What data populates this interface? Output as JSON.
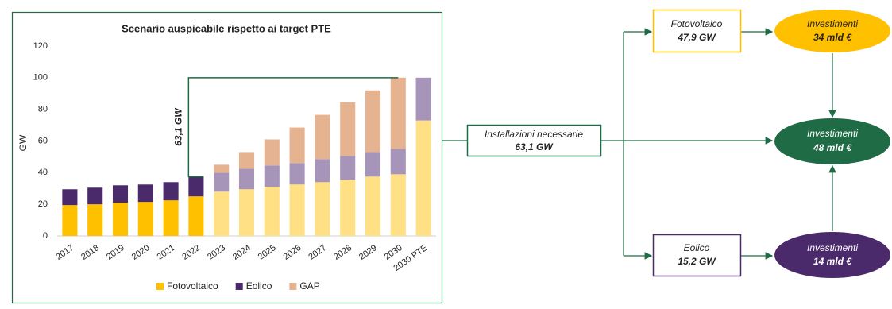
{
  "chart_data": {
    "type": "stacked-bar",
    "title": "Scenario auspicabile rispetto ai target PTE",
    "y_label": "GW",
    "categories": [
      "2017",
      "2018",
      "2019",
      "2020",
      "2021",
      "2022",
      "2023",
      "2024",
      "2025",
      "2026",
      "2027",
      "2028",
      "2029",
      "2030",
      "2030 PTE"
    ],
    "series": [
      {
        "name": "Fotovoltaico",
        "color": "#ffc000",
        "light_color": "#ffe084",
        "values": [
          19.5,
          20,
          21,
          21.5,
          22.5,
          25,
          28,
          29.5,
          31,
          32.5,
          34,
          35.5,
          37.5,
          39,
          73
        ]
      },
      {
        "name": "Eolico",
        "color": "#4b2a6b",
        "light_color": "#a795b9",
        "values": [
          10,
          10.5,
          11,
          11,
          11.5,
          12.5,
          12,
          13,
          13.5,
          13.5,
          14.5,
          15,
          15.5,
          16,
          27
        ]
      },
      {
        "name": "GAP",
        "color": "#e6b391",
        "light_color": "#e6b391",
        "values": [
          null,
          null,
          null,
          null,
          null,
          null,
          5,
          10.5,
          16.5,
          22.5,
          28,
          34,
          39,
          45,
          null
        ]
      }
    ],
    "light_from": "2023",
    "annotation": "63,1 GW",
    "annotation_color": "#1f6b45",
    "ylim": [
      0,
      120
    ],
    "yticks": [
      0,
      20,
      40,
      60,
      80,
      100,
      120
    ],
    "legend": "bottom"
  },
  "diagram": {
    "nodes": [
      {
        "label": "Installazioni necessarie",
        "value": "63,1 GW"
      },
      {
        "label": "Fotovoltaico",
        "value": "47,9 GW"
      },
      {
        "label": "Eolico",
        "value": "15,2 GW"
      },
      {
        "label": "Investimenti",
        "value": "34 mld €"
      },
      {
        "label": "Investimenti",
        "value": "48 mld €"
      },
      {
        "label": "Investimenti",
        "value": "14 mld €"
      }
    ]
  }
}
